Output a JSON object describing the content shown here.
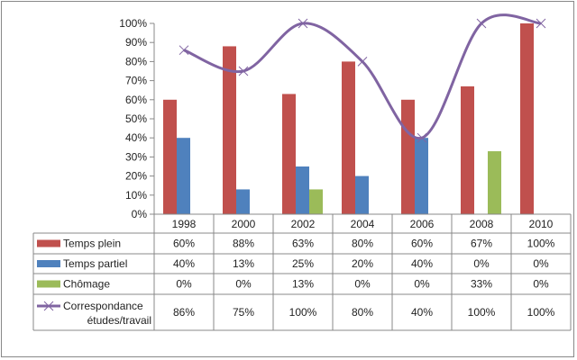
{
  "chart_data": {
    "type": "bar",
    "categories": [
      "1998",
      "2000",
      "2002",
      "2004",
      "2006",
      "2008",
      "2010"
    ],
    "series": [
      {
        "name": "Temps plein",
        "kind": "bar",
        "color": "#c0504d",
        "values": [
          60,
          88,
          63,
          80,
          60,
          67,
          100
        ],
        "labels": [
          "60%",
          "88%",
          "63%",
          "80%",
          "60%",
          "67%",
          "100%"
        ]
      },
      {
        "name": "Temps partiel",
        "kind": "bar",
        "color": "#4f81bd",
        "values": [
          40,
          13,
          25,
          20,
          40,
          0,
          0
        ],
        "labels": [
          "40%",
          "13%",
          "25%",
          "20%",
          "40%",
          "0%",
          "0%"
        ]
      },
      {
        "name": "Chômage",
        "kind": "bar",
        "color": "#9bbb59",
        "values": [
          0,
          0,
          13,
          0,
          0,
          33,
          0
        ],
        "labels": [
          "0%",
          "0%",
          "13%",
          "0%",
          "0%",
          "33%",
          "0%"
        ]
      },
      {
        "name": "Correspondance études/travail",
        "name_lines": [
          "Correspondance",
          "études/travail"
        ],
        "kind": "line",
        "color": "#8064a2",
        "values": [
          86,
          75,
          100,
          80,
          40,
          100,
          100
        ],
        "labels": [
          "86%",
          "75%",
          "100%",
          "80%",
          "40%",
          "100%",
          "100%"
        ]
      }
    ],
    "yticks": [
      "0%",
      "10%",
      "20%",
      "30%",
      "40%",
      "50%",
      "60%",
      "70%",
      "80%",
      "90%",
      "100%"
    ],
    "ylim": [
      0,
      100
    ],
    "legend": "data-table",
    "grid": false
  }
}
